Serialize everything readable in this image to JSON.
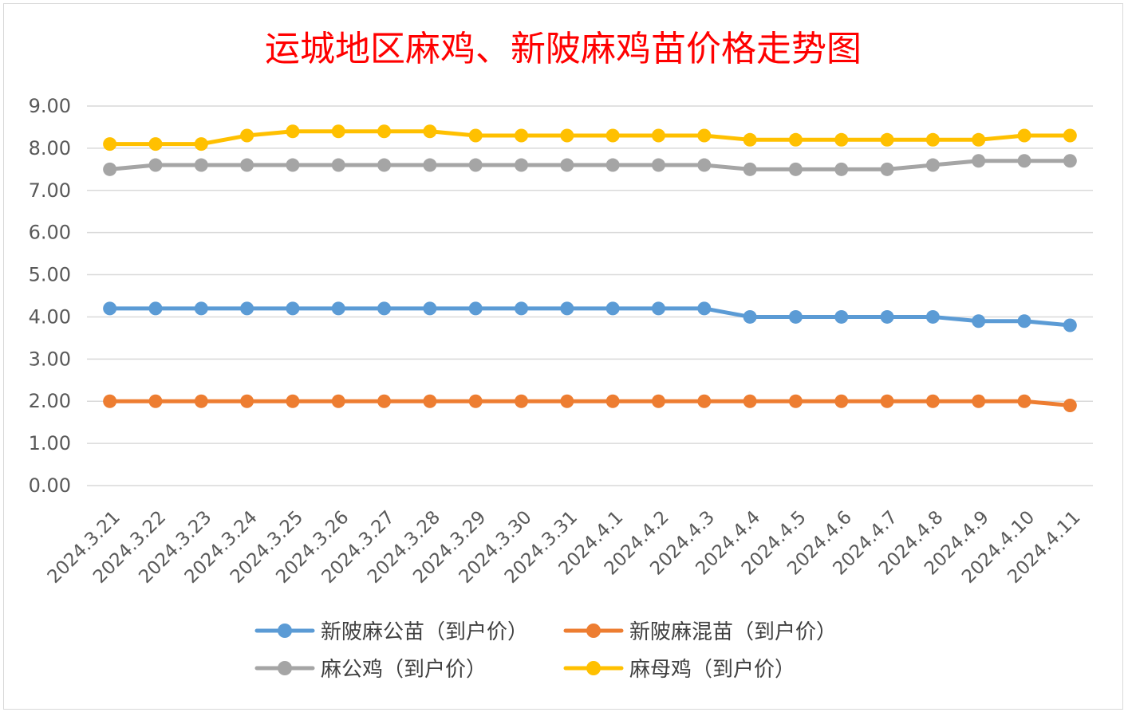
{
  "chart_data": {
    "type": "line",
    "title": "运城地区麻鸡、新陂麻鸡苗价格走势图",
    "xlabel": "",
    "ylabel": "",
    "ylim": [
      0,
      9
    ],
    "y_ticks": [
      "0.00",
      "1.00",
      "2.00",
      "3.00",
      "4.00",
      "5.00",
      "6.00",
      "7.00",
      "8.00",
      "9.00"
    ],
    "grid": true,
    "legend_position": "bottom",
    "categories": [
      "2024.3.21",
      "2024.3.22",
      "2024.3.23",
      "2024.3.24",
      "2024.3.25",
      "2024.3.26",
      "2024.3.27",
      "2024.3.28",
      "2024.3.29",
      "2024.3.30",
      "2024.3.31",
      "2024.4.1",
      "2024.4.2",
      "2024.4.3",
      "2024.4.4",
      "2024.4.5",
      "2024.4.6",
      "2024.4.7",
      "2024.4.8",
      "2024.4.9",
      "2024.4.10",
      "2024.4.11"
    ],
    "series": [
      {
        "name": "新陂麻公苗（到户价）",
        "color": "#5b9bd5",
        "values": [
          4.2,
          4.2,
          4.2,
          4.2,
          4.2,
          4.2,
          4.2,
          4.2,
          4.2,
          4.2,
          4.2,
          4.2,
          4.2,
          4.2,
          4.0,
          4.0,
          4.0,
          4.0,
          4.0,
          3.9,
          3.9,
          3.8
        ]
      },
      {
        "name": "新陂麻混苗（到户价）",
        "color": "#ed7d31",
        "values": [
          2.0,
          2.0,
          2.0,
          2.0,
          2.0,
          2.0,
          2.0,
          2.0,
          2.0,
          2.0,
          2.0,
          2.0,
          2.0,
          2.0,
          2.0,
          2.0,
          2.0,
          2.0,
          2.0,
          2.0,
          2.0,
          1.9
        ]
      },
      {
        "name": "麻公鸡（到户价）",
        "color": "#a5a5a5",
        "values": [
          7.5,
          7.6,
          7.6,
          7.6,
          7.6,
          7.6,
          7.6,
          7.6,
          7.6,
          7.6,
          7.6,
          7.6,
          7.6,
          7.6,
          7.5,
          7.5,
          7.5,
          7.5,
          7.6,
          7.7,
          7.7,
          7.7
        ]
      },
      {
        "name": "麻母鸡（到户价）",
        "color": "#ffc000",
        "values": [
          8.1,
          8.1,
          8.1,
          8.3,
          8.4,
          8.4,
          8.4,
          8.4,
          8.3,
          8.3,
          8.3,
          8.3,
          8.3,
          8.3,
          8.2,
          8.2,
          8.2,
          8.2,
          8.2,
          8.2,
          8.3,
          8.3
        ]
      }
    ]
  }
}
